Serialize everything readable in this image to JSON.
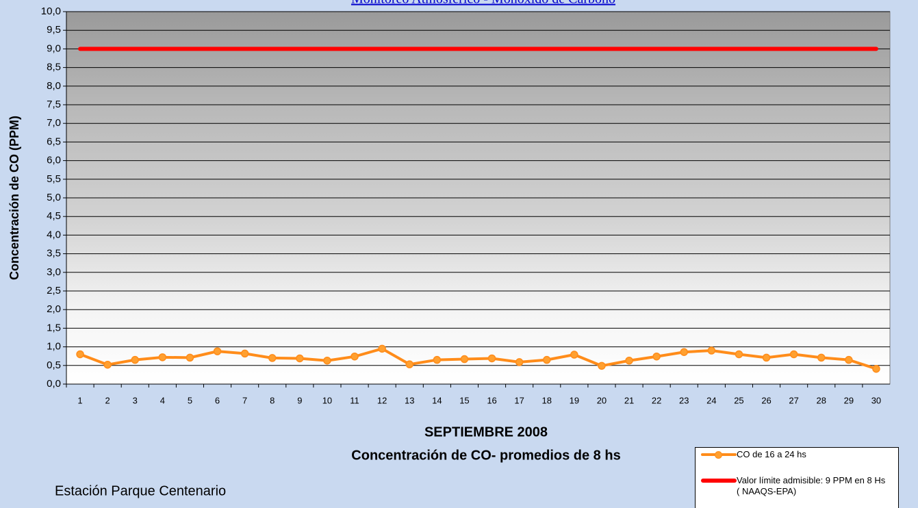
{
  "chart_data": {
    "type": "line",
    "title": "Monitoreo Atmosférico - Monóxido de Carbono",
    "x_label": "SEPTIEMBRE 2008",
    "subtitle": "Concentración de CO- promedios de 8 hs",
    "y_label": "Concentración de CO (PPM)",
    "annotation": "Estación Parque Centenario",
    "categories": [
      "1",
      "2",
      "3",
      "4",
      "5",
      "6",
      "7",
      "8",
      "9",
      "10",
      "11",
      "12",
      "13",
      "14",
      "15",
      "16",
      "17",
      "18",
      "19",
      "20",
      "21",
      "22",
      "23",
      "24",
      "25",
      "26",
      "27",
      "28",
      "29",
      "30"
    ],
    "series": [
      {
        "name": "CO de 16 a 24 hs",
        "color": "#ff8c1a",
        "marker": true,
        "values": [
          0.8,
          0.52,
          0.65,
          0.72,
          0.71,
          0.88,
          0.82,
          0.7,
          0.69,
          0.63,
          0.74,
          0.95,
          0.53,
          0.65,
          0.67,
          0.69,
          0.59,
          0.65,
          0.79,
          0.49,
          0.63,
          0.74,
          0.86,
          0.9,
          0.8,
          0.71,
          0.8,
          0.71,
          0.65,
          0.41
        ]
      },
      {
        "name": "Valor límite admisible: 9 PPM en 8 Hs ( NAAQS-EPA)",
        "color": "#ff0000",
        "marker": false,
        "values": [
          9,
          9,
          9,
          9,
          9,
          9,
          9,
          9,
          9,
          9,
          9,
          9,
          9,
          9,
          9,
          9,
          9,
          9,
          9,
          9,
          9,
          9,
          9,
          9,
          9,
          9,
          9,
          9,
          9,
          9
        ]
      }
    ],
    "ylim": [
      0,
      10
    ],
    "yticks": [
      {
        "value": 0,
        "label": "0,0"
      },
      {
        "value": 0.5,
        "label": "0,5"
      },
      {
        "value": 1,
        "label": "1,0"
      },
      {
        "value": 1.5,
        "label": "1,5"
      },
      {
        "value": 2,
        "label": "2,0"
      },
      {
        "value": 2.5,
        "label": "2,5"
      },
      {
        "value": 3,
        "label": "3,0"
      },
      {
        "value": 3.5,
        "label": "3,5"
      },
      {
        "value": 4,
        "label": "4,0"
      },
      {
        "value": 4.5,
        "label": "4,5"
      },
      {
        "value": 5,
        "label": "5,0"
      },
      {
        "value": 5.5,
        "label": "5,5"
      },
      {
        "value": 6,
        "label": "6,0"
      },
      {
        "value": 6.5,
        "label": "6,5"
      },
      {
        "value": 7,
        "label": "7,0"
      },
      {
        "value": 7.5,
        "label": "7,5"
      },
      {
        "value": 8,
        "label": "8,0"
      },
      {
        "value": 8.5,
        "label": "8,5"
      },
      {
        "value": 9,
        "label": "9,0"
      },
      {
        "value": 9.5,
        "label": "9,5"
      },
      {
        "value": 10,
        "label": "10,0"
      }
    ],
    "grid": true,
    "legend": "bottom-right"
  }
}
